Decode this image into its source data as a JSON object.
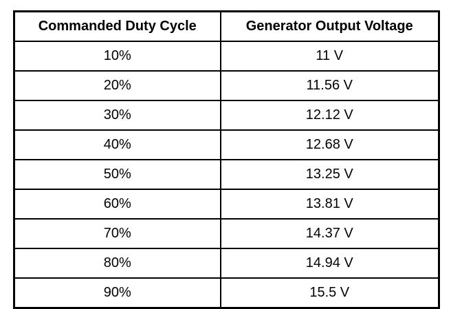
{
  "table": {
    "header": [
      "Commanded Duty Cycle",
      "Generator Output Voltage"
    ],
    "rows": [
      [
        "10%",
        "11 V"
      ],
      [
        "20%",
        "11.56 V"
      ],
      [
        "30%",
        "12.12 V"
      ],
      [
        "40%",
        "12.68 V"
      ],
      [
        "50%",
        "13.25 V"
      ],
      [
        "60%",
        "13.81 V"
      ],
      [
        "70%",
        "14.37 V"
      ],
      [
        "80%",
        "14.94 V"
      ],
      [
        "90%",
        "15.5 V"
      ]
    ]
  }
}
